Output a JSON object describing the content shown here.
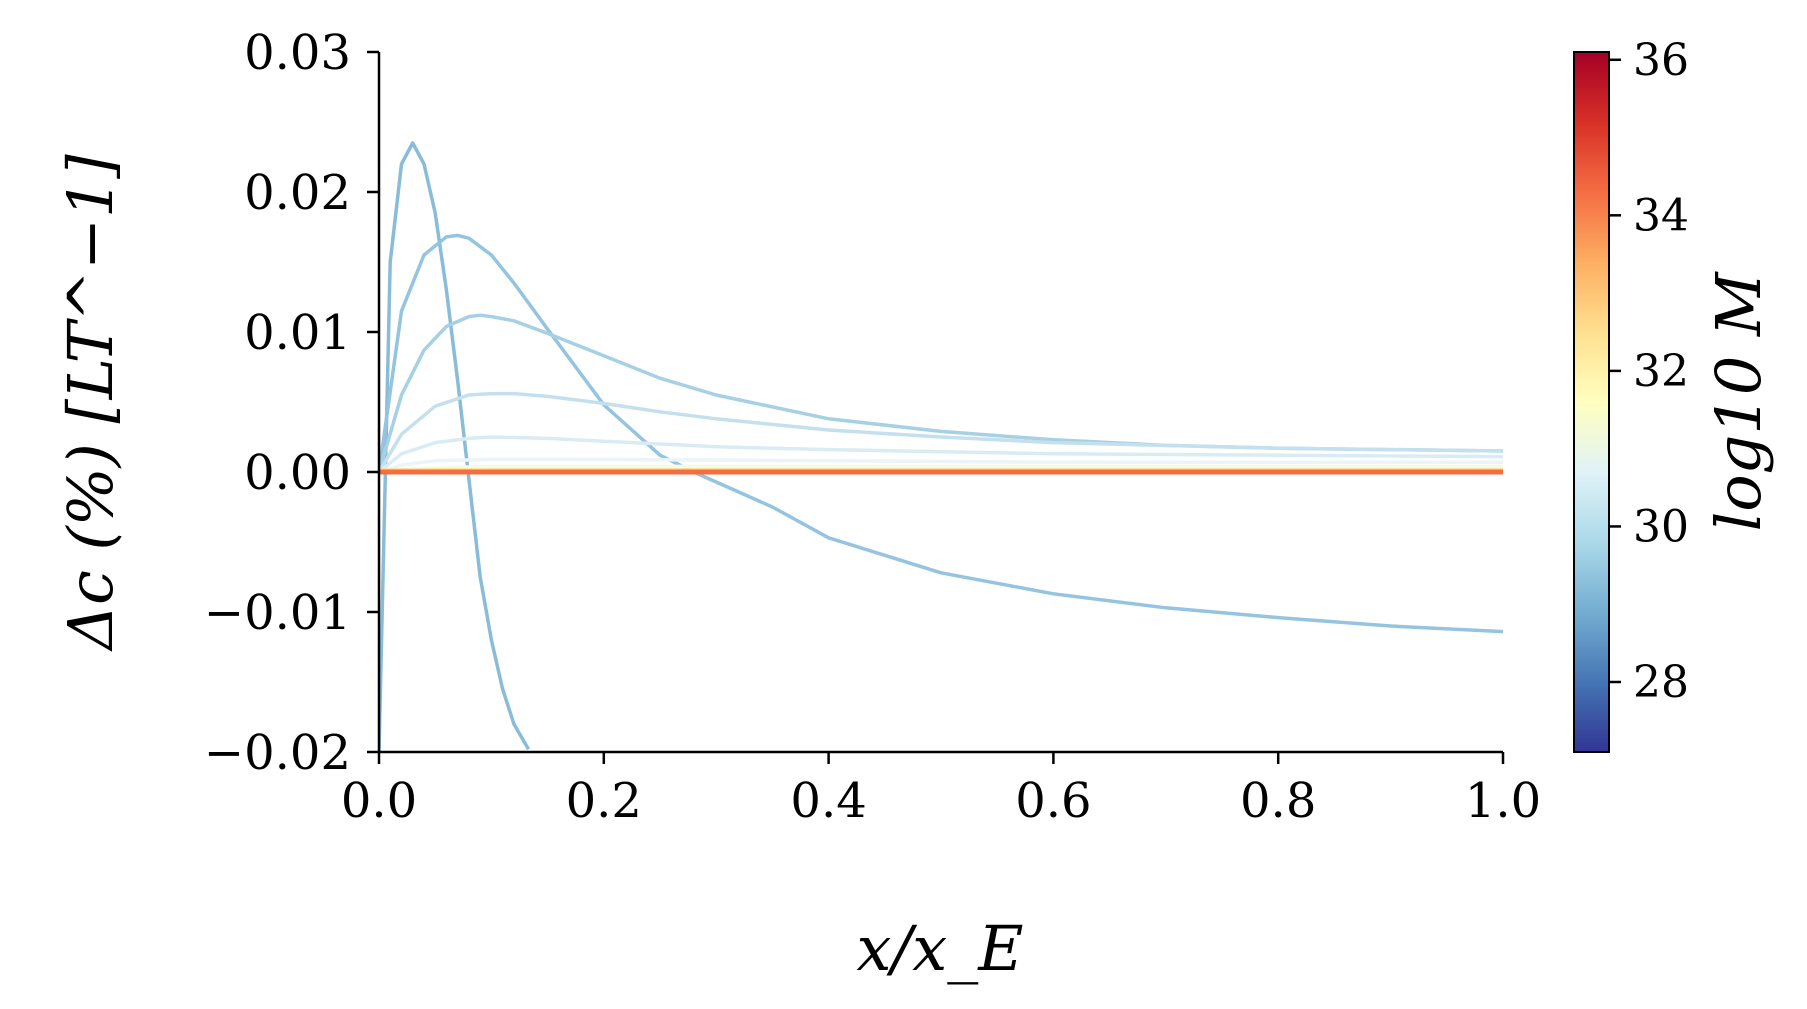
{
  "chart_data": {
    "type": "line",
    "xlabel": "x/x_E",
    "ylabel": "Δc (%) [LT^−1]",
    "xlim": [
      0.0,
      1.0
    ],
    "ylim": [
      -0.02,
      0.03
    ],
    "x_ticks": [
      "0.0",
      "0.2",
      "0.4",
      "0.6",
      "0.8",
      "1.0"
    ],
    "y_ticks": [
      "0.03",
      "0.02",
      "0.01",
      "0.00",
      "−0.01",
      "−0.02"
    ],
    "grid": false,
    "colorbar": {
      "label": "log10 M",
      "range": [
        27.1,
        36.1
      ],
      "ticks": [
        "36",
        "34",
        "32",
        "30",
        "28"
      ],
      "colormap": [
        "#313695",
        "#4575b4",
        "#74add1",
        "#abd9e9",
        "#e0f3f8",
        "#ffffbf",
        "#fee090",
        "#fdae61",
        "#f46d43",
        "#d73027",
        "#a50026"
      ]
    },
    "series": [
      {
        "color": "#89bcd9",
        "x": [
          0.0,
          0.01,
          0.02,
          0.03,
          0.04,
          0.05,
          0.06,
          0.07,
          0.08,
          0.09,
          0.1,
          0.11,
          0.12,
          0.133
        ],
        "y": [
          -0.02,
          0.015,
          0.022,
          0.0235,
          0.022,
          0.0185,
          0.013,
          0.0065,
          -0.0005,
          -0.0075,
          -0.012,
          -0.0155,
          -0.018,
          -0.0198
        ]
      },
      {
        "color": "#94c4df",
        "x": [
          0.0,
          0.02,
          0.04,
          0.06,
          0.07,
          0.08,
          0.1,
          0.12,
          0.15,
          0.2,
          0.25,
          0.28,
          0.35,
          0.4,
          0.5,
          0.6,
          0.7,
          0.8,
          0.9,
          1.0
        ],
        "y": [
          0.0,
          0.0115,
          0.0155,
          0.0168,
          0.0169,
          0.0167,
          0.0155,
          0.0135,
          0.0102,
          0.0048,
          0.0012,
          0.0,
          -0.0025,
          -0.0047,
          -0.0072,
          -0.0087,
          -0.0097,
          -0.0104,
          -0.011,
          -0.0114
        ]
      },
      {
        "color": "#a6d0e4",
        "x": [
          0.0,
          0.02,
          0.04,
          0.06,
          0.08,
          0.09,
          0.1,
          0.12,
          0.15,
          0.2,
          0.25,
          0.3,
          0.4,
          0.5,
          0.6,
          0.7,
          0.8,
          0.9,
          1.0
        ],
        "y": [
          0.0,
          0.0055,
          0.0087,
          0.0104,
          0.0111,
          0.0112,
          0.0111,
          0.0108,
          0.0099,
          0.0083,
          0.0067,
          0.0055,
          0.0038,
          0.0029,
          0.0023,
          0.0019,
          0.0017,
          0.0016,
          0.0015
        ]
      },
      {
        "color": "#c4e0ee",
        "x": [
          0.0,
          0.02,
          0.05,
          0.08,
          0.1,
          0.12,
          0.15,
          0.2,
          0.25,
          0.3,
          0.4,
          0.5,
          0.6,
          0.8,
          1.0
        ],
        "y": [
          0.0,
          0.0027,
          0.0047,
          0.0055,
          0.0056,
          0.0056,
          0.0054,
          0.0049,
          0.0043,
          0.0038,
          0.003,
          0.0025,
          0.0021,
          0.0017,
          0.0015
        ]
      },
      {
        "color": "#d9ecf4",
        "x": [
          0.0,
          0.02,
          0.05,
          0.08,
          0.1,
          0.15,
          0.2,
          0.3,
          0.4,
          0.6,
          0.8,
          1.0
        ],
        "y": [
          0.0,
          0.0013,
          0.0021,
          0.0024,
          0.0025,
          0.0024,
          0.0022,
          0.0018,
          0.0016,
          0.0013,
          0.0012,
          0.0011
        ]
      },
      {
        "color": "#ebf5f9",
        "x": [
          0.0,
          0.02,
          0.05,
          0.1,
          0.2,
          0.4,
          0.6,
          0.8,
          1.0
        ],
        "y": [
          0.0,
          0.0005,
          0.0008,
          0.0009,
          0.0009,
          0.0008,
          0.0007,
          0.0007,
          0.0007
        ]
      },
      {
        "color": "#f6f9e6",
        "x": [
          0.0,
          0.05,
          0.1,
          0.5,
          1.0
        ],
        "y": [
          0.0,
          0.0003,
          0.0004,
          0.0004,
          0.0004
        ]
      },
      {
        "color": "#fee08b",
        "x": [
          0.0,
          1.0
        ],
        "y": [
          0.00015,
          0.00015
        ]
      },
      {
        "color": "#f46d43",
        "x": [
          0.0,
          1.0
        ],
        "y": [
          0.0,
          0.0
        ]
      }
    ]
  }
}
